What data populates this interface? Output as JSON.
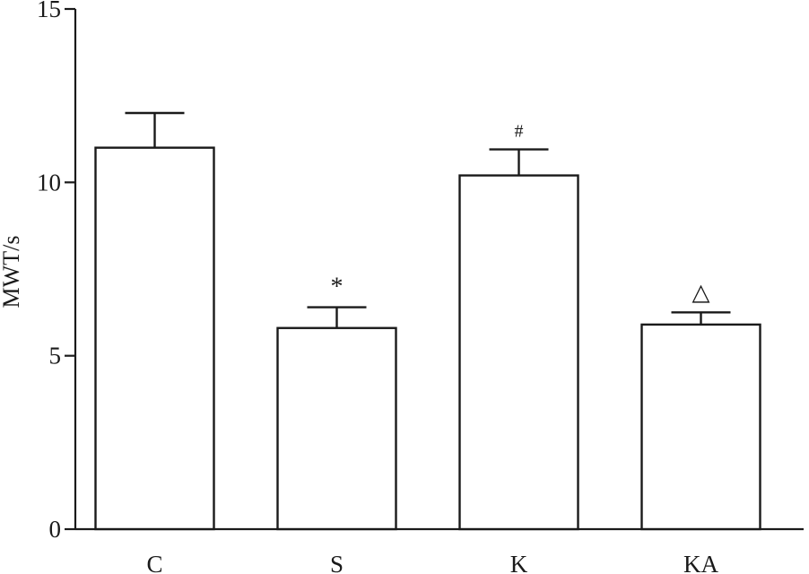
{
  "chart_data": {
    "type": "bar",
    "title": "",
    "xlabel": "",
    "ylabel": "MWT/s",
    "ylim": [
      0,
      15
    ],
    "yticks": [
      "0",
      "5",
      "10",
      "15"
    ],
    "categories": [
      "C",
      "S",
      "K",
      "KA"
    ],
    "values": [
      11.0,
      5.8,
      10.2,
      5.9
    ],
    "errors": [
      1.0,
      0.6,
      0.75,
      0.35
    ],
    "annotations": [
      "",
      "*",
      "#",
      "△"
    ],
    "grid": false,
    "colors": {
      "bar_fill": "#ffffff",
      "stroke": "#1a1a1a"
    }
  }
}
